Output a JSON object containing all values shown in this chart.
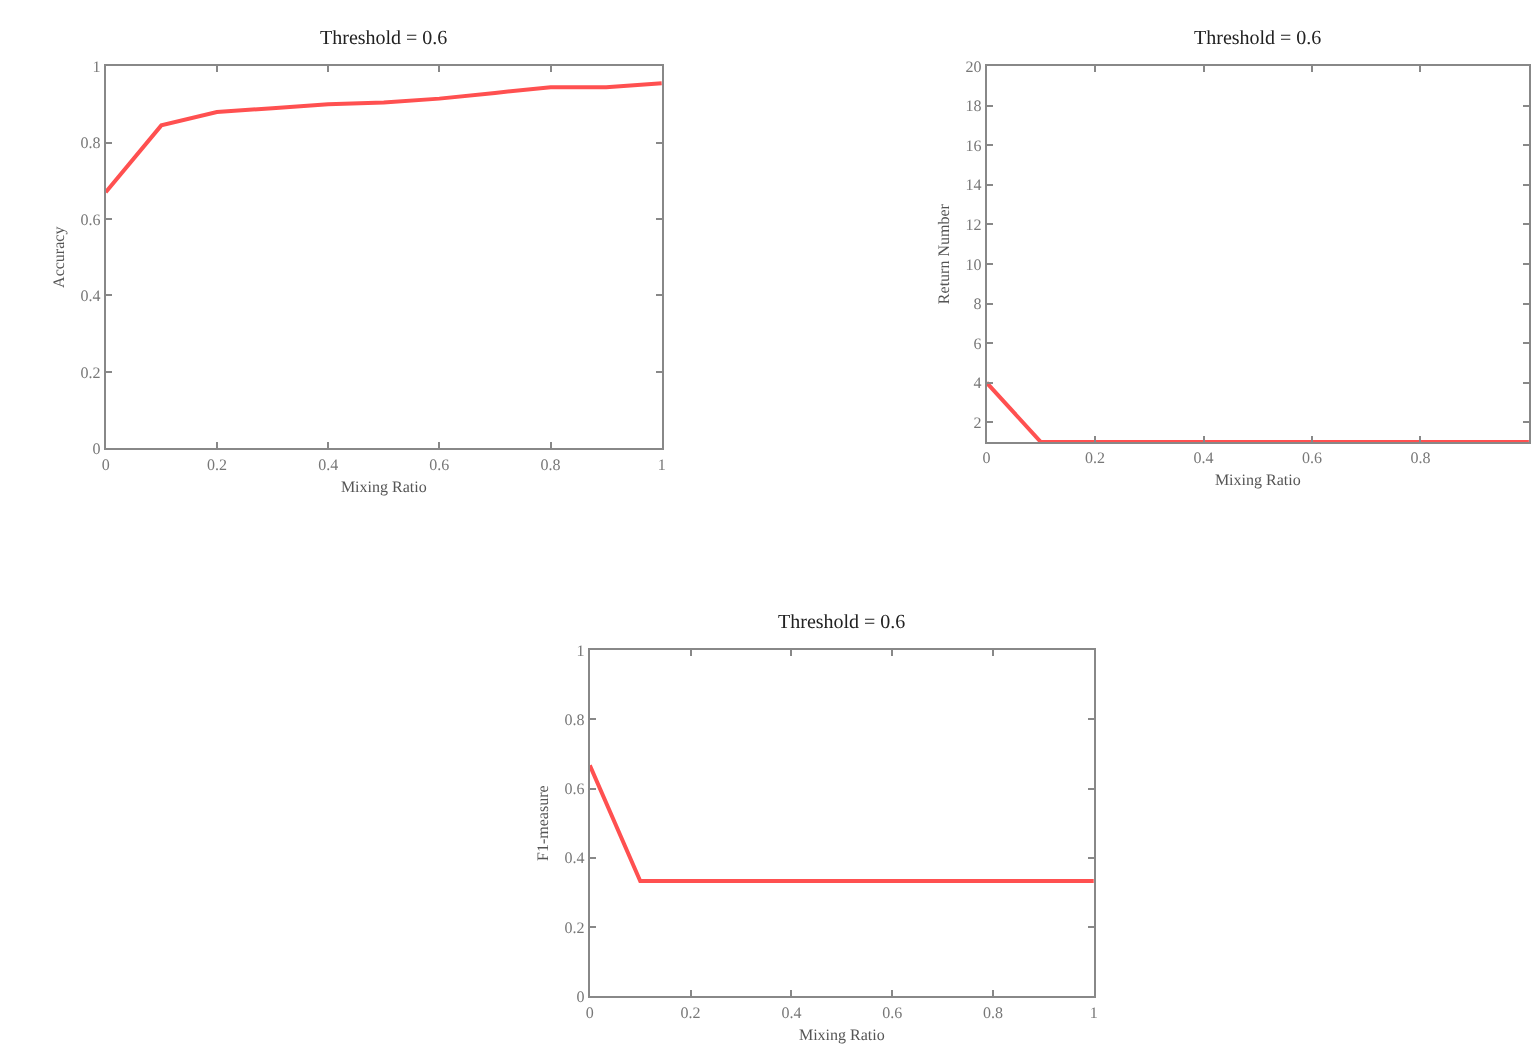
{
  "chart_data": [
    {
      "type": "line",
      "title": "Threshold = 0.6",
      "xlabel": "Mixing Ratio",
      "ylabel": "Accuracy",
      "x": [
        0,
        0.1,
        0.2,
        0.3,
        0.4,
        0.5,
        0.6,
        0.7,
        0.8,
        0.9,
        1
      ],
      "series": [
        {
          "color": "#ff5050",
          "values": [
            0.67,
            0.845,
            0.88,
            0.89,
            0.9,
            0.905,
            0.915,
            0.93,
            0.945,
            0.945,
            0.955
          ]
        }
      ],
      "xlim": [
        0,
        1
      ],
      "ylim": [
        0,
        1
      ],
      "xticks": [
        0,
        0.2,
        0.4,
        0.6,
        0.8,
        1
      ],
      "yticks": [
        0,
        0.2,
        0.4,
        0.6,
        0.8,
        1
      ]
    },
    {
      "type": "line",
      "title": "Threshold = 0.6",
      "xlabel": "Mixing Ratio",
      "ylabel": "Return Number",
      "x": [
        0,
        0.1,
        0.2,
        0.3,
        0.4,
        0.5,
        0.6,
        0.7,
        0.8,
        0.9,
        1
      ],
      "series": [
        {
          "color": "#ff5050",
          "values": [
            4,
            1,
            1,
            1,
            1,
            1,
            1,
            1,
            1,
            1,
            1
          ]
        }
      ],
      "xlim": [
        0,
        1
      ],
      "ylim": [
        1,
        20
      ],
      "xticks": [
        0,
        0.2,
        0.4,
        0.6,
        0.8
      ],
      "yticks": [
        2,
        4,
        6,
        8,
        10,
        12,
        14,
        16,
        18,
        20
      ]
    },
    {
      "type": "line",
      "title": "Threshold = 0.6",
      "xlabel": "Mixing Ratio",
      "ylabel": "F1-measure",
      "x": [
        0,
        0.1,
        0.2,
        0.3,
        0.4,
        0.5,
        0.6,
        0.7,
        0.8,
        0.9,
        1
      ],
      "series": [
        {
          "color": "#ff5050",
          "values": [
            0.667,
            0.333,
            0.333,
            0.333,
            0.333,
            0.333,
            0.333,
            0.333,
            0.333,
            0.333,
            0.333
          ]
        }
      ],
      "xlim": [
        0,
        1
      ],
      "ylim": [
        0,
        1
      ],
      "xticks": [
        0,
        0.2,
        0.4,
        0.6,
        0.8,
        1
      ],
      "yticks": [
        0,
        0.2,
        0.4,
        0.6,
        0.8,
        1
      ]
    }
  ]
}
